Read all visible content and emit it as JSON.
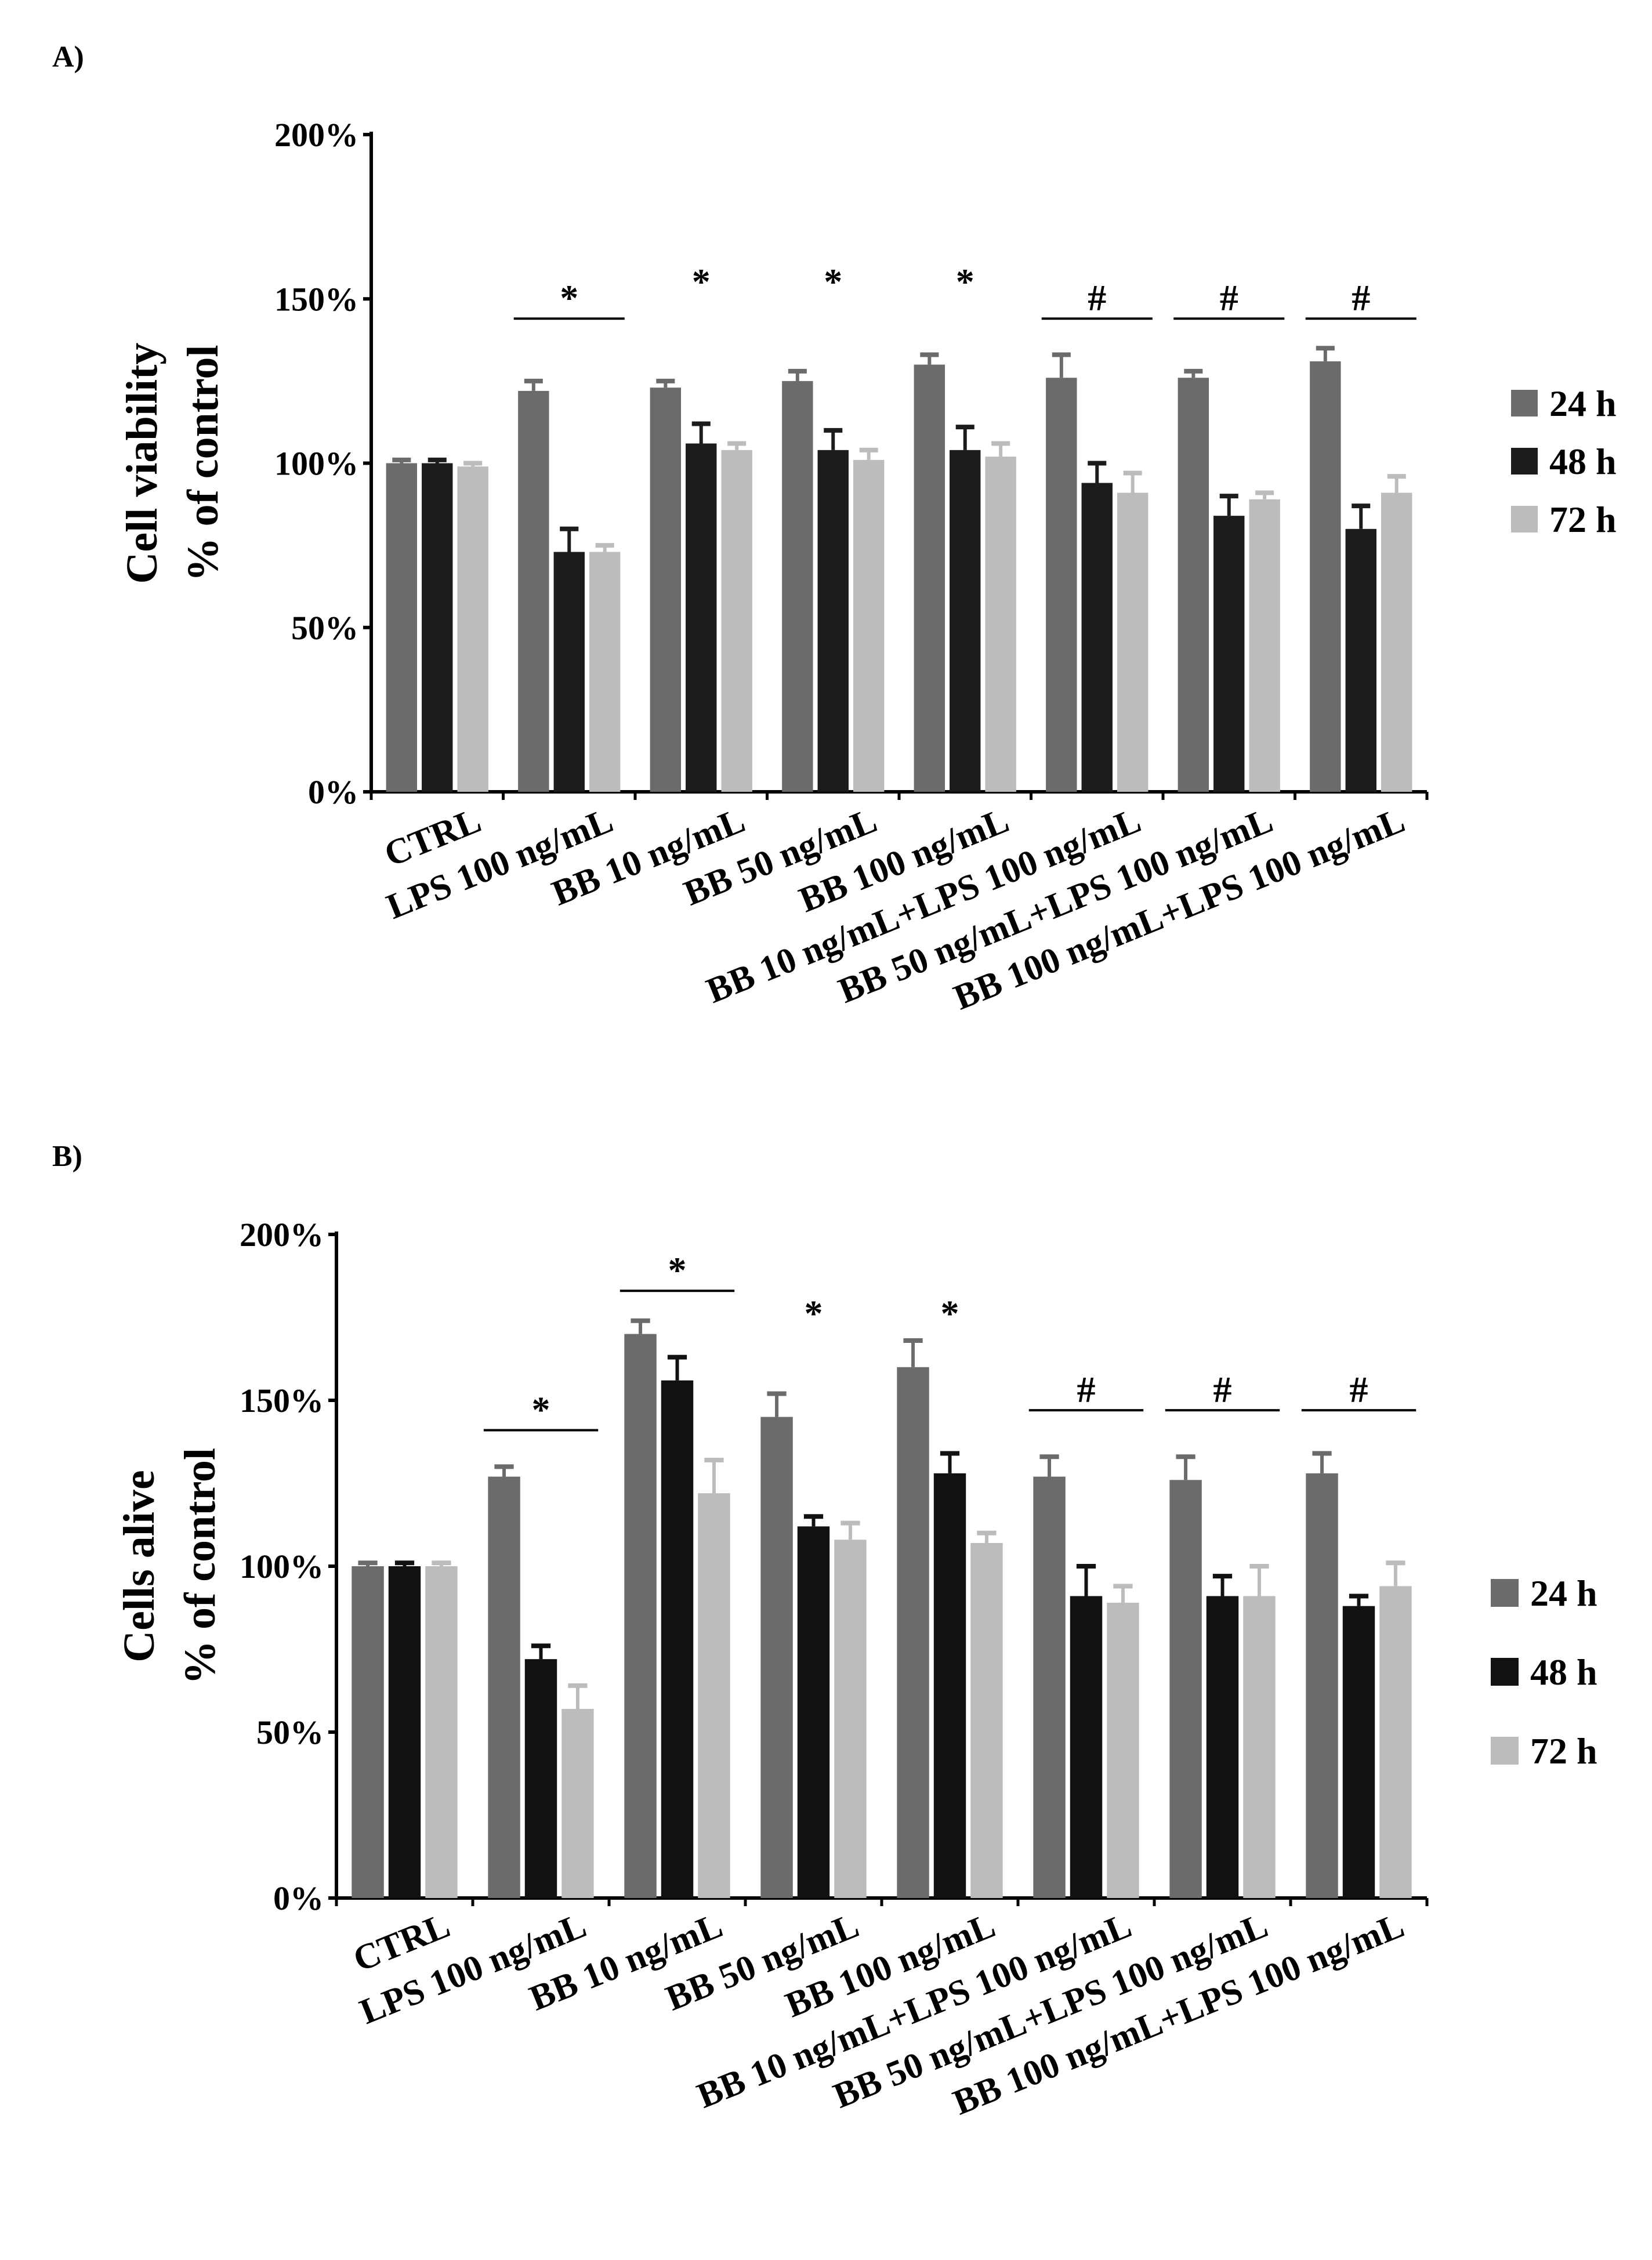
{
  "chart_data": [
    {
      "panel_label": "A)",
      "type": "bar",
      "ylabel_lines": [
        "Cell viability",
        "% of control"
      ],
      "ylim": [
        0,
        200
      ],
      "ytick_values": [
        0,
        50,
        100,
        150,
        200
      ],
      "ytick_labels": [
        "0%",
        "50%",
        "100%",
        "150%",
        "200%"
      ],
      "categories": [
        "CTRL",
        "LPS 100 ng/mL",
        "BB 10 ng/mL",
        "BB 50 ng/mL",
        "BB 100 ng/mL",
        "BB 10 ng/mL+LPS 100 ng/mL",
        "BB 50 ng/mL+LPS 100 ng/mL",
        "BB 100 ng/mL+LPS 100 ng/mL"
      ],
      "series": [
        {
          "name": "24 h",
          "color": "#6b6b6b",
          "values": [
            100,
            122,
            123,
            125,
            130,
            126,
            126,
            131
          ],
          "errors": [
            1,
            3,
            2,
            3,
            3,
            7,
            2,
            4
          ]
        },
        {
          "name": "48 h",
          "color": "#1c1c1c",
          "values": [
            100,
            73,
            106,
            104,
            104,
            94,
            84,
            80
          ],
          "errors": [
            1,
            7,
            6,
            6,
            7,
            6,
            6,
            7
          ]
        },
        {
          "name": "72 h",
          "color": "#bcbcbc",
          "values": [
            99,
            73,
            104,
            101,
            102,
            91,
            89,
            91
          ],
          "errors": [
            1,
            2,
            2,
            3,
            4,
            6,
            2,
            5
          ]
        }
      ],
      "annotations": [
        {
          "text": "*",
          "group_from": 1,
          "group_to": 1,
          "y": 144,
          "bar": true
        },
        {
          "text": "*",
          "group_from": 2,
          "group_to": 2,
          "y": 149,
          "bar": false
        },
        {
          "text": "*",
          "group_from": 3,
          "group_to": 3,
          "y": 149,
          "bar": false
        },
        {
          "text": "*",
          "group_from": 4,
          "group_to": 4,
          "y": 149,
          "bar": false
        },
        {
          "text": "#",
          "group_from": 5,
          "group_to": 5,
          "y": 144,
          "bar": true
        },
        {
          "text": "#",
          "group_from": 6,
          "group_to": 6,
          "y": 144,
          "bar": true
        },
        {
          "text": "#",
          "group_from": 7,
          "group_to": 7,
          "y": 144,
          "bar": true
        }
      ]
    },
    {
      "panel_label": "B)",
      "type": "bar",
      "ylabel_lines": [
        "Cells alive",
        "% of control"
      ],
      "ylim": [
        0,
        200
      ],
      "ytick_values": [
        0,
        50,
        100,
        150,
        200
      ],
      "ytick_labels": [
        "0%",
        "50%",
        "100%",
        "150%",
        "200%"
      ],
      "categories": [
        "CTRL",
        "LPS 100 ng/mL",
        "BB 10 ng/mL",
        "BB 50 ng/mL",
        "BB 100 ng/mL",
        "BB 10 ng/mL+LPS 100 ng/mL",
        "BB 50 ng/mL+LPS 100 ng/mL",
        "BB 100 ng/mL+LPS 100 ng/mL"
      ],
      "series": [
        {
          "name": "24 h",
          "color": "#6b6b6b",
          "values": [
            100,
            127,
            170,
            145,
            160,
            127,
            126,
            128
          ],
          "errors": [
            1,
            3,
            4,
            7,
            8,
            6,
            7,
            6
          ]
        },
        {
          "name": "48 h",
          "color": "#111111",
          "values": [
            100,
            72,
            156,
            112,
            128,
            91,
            91,
            88
          ],
          "errors": [
            1,
            4,
            7,
            3,
            6,
            9,
            6,
            3
          ]
        },
        {
          "name": "72 h",
          "color": "#bcbcbc",
          "values": [
            100,
            57,
            122,
            108,
            107,
            89,
            91,
            94
          ],
          "errors": [
            1,
            7,
            10,
            5,
            3,
            5,
            9,
            7
          ]
        }
      ],
      "annotations": [
        {
          "text": "*",
          "group_from": 1,
          "group_to": 1,
          "y": 141,
          "bar": true
        },
        {
          "text": "*",
          "group_from": 2,
          "group_to": 2,
          "y": 183,
          "bar": true
        },
        {
          "text": "*",
          "group_from": 3,
          "group_to": 3,
          "y": 170,
          "bar": false
        },
        {
          "text": "*",
          "group_from": 4,
          "group_to": 4,
          "y": 170,
          "bar": false
        },
        {
          "text": "#",
          "group_from": 5,
          "group_to": 5,
          "y": 147,
          "bar": true
        },
        {
          "text": "#",
          "group_from": 6,
          "group_to": 6,
          "y": 147,
          "bar": true
        },
        {
          "text": "#",
          "group_from": 7,
          "group_to": 7,
          "y": 147,
          "bar": true
        }
      ]
    }
  ]
}
